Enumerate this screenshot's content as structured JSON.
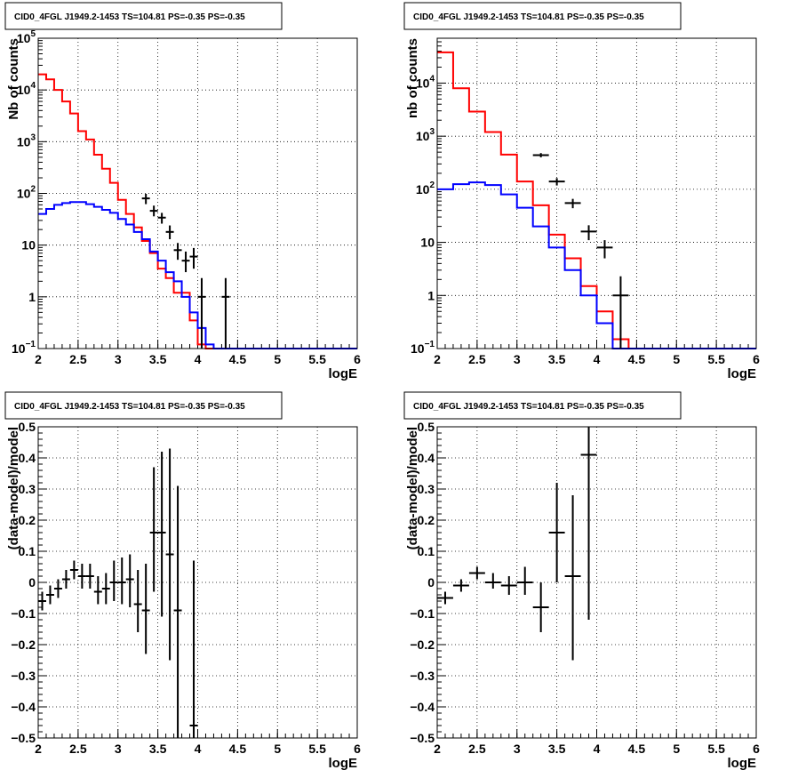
{
  "panels": [
    {
      "id": "top-left",
      "title": "CID0_4FGL J1949.2-1453 TS=104.81 PS=-0.35 PS=-0.35",
      "chart_data": {
        "type": "histogram",
        "xlabel": "logE",
        "ylabel": "Nb of counts",
        "xlim": [
          2,
          6
        ],
        "ylim": [
          0.1,
          100000
        ],
        "yscale": "log",
        "grid": true,
        "xticks": [
          "2",
          "2.5",
          "3",
          "3.5",
          "4",
          "4.5",
          "5",
          "5.5",
          "6"
        ],
        "yticks": [
          {
            "v": 0.1,
            "label": "10",
            "exp": "−1"
          },
          {
            "v": 1,
            "label": "1",
            "exp": ""
          },
          {
            "v": 10,
            "label": "10",
            "exp": ""
          },
          {
            "v": 100,
            "label": "10",
            "exp": "2"
          },
          {
            "v": 1000,
            "label": "10",
            "exp": "3"
          },
          {
            "v": 10000,
            "label": "10",
            "exp": "4"
          },
          {
            "v": 100000,
            "label": "10",
            "exp": "5"
          }
        ],
        "bin_edges": [
          2.0,
          2.1,
          2.2,
          2.3,
          2.4,
          2.5,
          2.6,
          2.7,
          2.8,
          2.9,
          3.0,
          3.1,
          3.2,
          3.3,
          3.4,
          3.5,
          3.6,
          3.7,
          3.8,
          3.9,
          4.0,
          4.1,
          4.2,
          4.3,
          4.4,
          4.5,
          4.6,
          4.7,
          4.8,
          4.9,
          5.0,
          5.1,
          5.2,
          5.3,
          5.4,
          5.5,
          5.6,
          5.7,
          5.8,
          5.9,
          6.0
        ],
        "series": [
          {
            "color": "#ff0000",
            "kind": "step",
            "values": [
              20000,
              16000,
              10000,
              6000,
              3500,
              1600,
              1100,
              560,
              300,
              160,
              75,
              40,
              22,
              12,
              7,
              3.5,
              2.3,
              1.2,
              1.2,
              0.35,
              0.12,
              0.1,
              0.1,
              0.1,
              0.1,
              0.1,
              0.1,
              0.1,
              0.1,
              0.1,
              0.1,
              0.1,
              0.1,
              0.1,
              0.1,
              0.1,
              0.1,
              0.1,
              0.1,
              0.1
            ]
          },
          {
            "color": "#0000ff",
            "kind": "step",
            "values": [
              40,
              50,
              60,
              65,
              68,
              68,
              62,
              55,
              48,
              42,
              32,
              25,
              18,
              13,
              7.5,
              5,
              3,
              2,
              1,
              0.5,
              0.25,
              0.12,
              0.1,
              0.1,
              0.1,
              0.1,
              0.1,
              0.1,
              0.1,
              0.1,
              0.1,
              0.1,
              0.1,
              0.1,
              0.1,
              0.1,
              0.1,
              0.1,
              0.1,
              0.1
            ]
          },
          {
            "color": "#000000",
            "kind": "points",
            "xerr": 0.05,
            "points": [
              {
                "x": 3.35,
                "y": 80,
                "lo": 62,
                "hi": 98
              },
              {
                "x": 3.45,
                "y": 46,
                "lo": 36,
                "hi": 58
              },
              {
                "x": 3.55,
                "y": 34,
                "lo": 26,
                "hi": 42
              },
              {
                "x": 3.65,
                "y": 18,
                "lo": 13,
                "hi": 24
              },
              {
                "x": 3.75,
                "y": 8,
                "lo": 5.2,
                "hi": 11
              },
              {
                "x": 3.85,
                "y": 5,
                "lo": 3,
                "hi": 7.5
              },
              {
                "x": 3.95,
                "y": 6,
                "lo": 3.5,
                "hi": 8.8
              },
              {
                "x": 4.05,
                "y": 1,
                "lo": 0.1,
                "hi": 2.3
              },
              {
                "x": 4.35,
                "y": 1,
                "lo": 0.1,
                "hi": 2.3
              }
            ]
          }
        ]
      }
    },
    {
      "id": "top-right",
      "title": "CID0_4FGL J1949.2-1453 TS=104.81 PS=-0.35 PS=-0.35",
      "chart_data": {
        "type": "histogram",
        "xlabel": "logE",
        "ylabel": "nb of counts",
        "xlim": [
          2,
          6
        ],
        "ylim": [
          0.1,
          70000
        ],
        "yscale": "log",
        "grid": true,
        "xticks": [
          "2",
          "2.5",
          "3",
          "3.5",
          "4",
          "4.5",
          "5",
          "5.5",
          "6"
        ],
        "yticks": [
          {
            "v": 0.1,
            "label": "10",
            "exp": "−1"
          },
          {
            "v": 1,
            "label": "1",
            "exp": ""
          },
          {
            "v": 10,
            "label": "10",
            "exp": ""
          },
          {
            "v": 100,
            "label": "10",
            "exp": "2"
          },
          {
            "v": 1000,
            "label": "10",
            "exp": "3"
          },
          {
            "v": 10000,
            "label": "10",
            "exp": "4"
          }
        ],
        "bin_edges": [
          2.0,
          2.2,
          2.4,
          2.6,
          2.8,
          3.0,
          3.2,
          3.4,
          3.6,
          3.8,
          4.0,
          4.2,
          4.4,
          4.6,
          4.8,
          5.0,
          5.2,
          5.4,
          5.6,
          5.8,
          6.0
        ],
        "series": [
          {
            "color": "#ff0000",
            "kind": "step",
            "values": [
              38000,
              8000,
              2900,
              1200,
              450,
              140,
              50,
              14,
              5,
              1.5,
              0.5,
              0.15,
              0.1,
              0.1,
              0.1,
              0.1,
              0.1,
              0.1,
              0.1,
              0.1
            ]
          },
          {
            "color": "#0000ff",
            "kind": "step",
            "values": [
              100,
              125,
              135,
              120,
              80,
              45,
              20,
              8,
              3,
              1,
              0.3,
              0.1,
              0.1,
              0.1,
              0.1,
              0.1,
              0.1,
              0.1,
              0.1,
              0.1
            ]
          },
          {
            "color": "#000000",
            "kind": "points",
            "xerr": 0.1,
            "points": [
              {
                "x": 3.3,
                "y": 440,
                "lo": 400,
                "hi": 480
              },
              {
                "x": 3.5,
                "y": 140,
                "lo": 118,
                "hi": 162
              },
              {
                "x": 3.7,
                "y": 55,
                "lo": 44,
                "hi": 66
              },
              {
                "x": 3.9,
                "y": 16,
                "lo": 11,
                "hi": 21
              },
              {
                "x": 4.1,
                "y": 8,
                "lo": 5,
                "hi": 11
              },
              {
                "x": 4.3,
                "y": 1,
                "lo": 0.1,
                "hi": 2.3
              }
            ]
          }
        ]
      }
    },
    {
      "id": "bottom-left",
      "title": "CID0_4FGL J1949.2-1453 TS=104.81 PS=-0.35 PS=-0.35",
      "chart_data": {
        "type": "scatter",
        "xlabel": "logE",
        "ylabel": "(data-model)/model",
        "xlim": [
          2,
          6
        ],
        "ylim": [
          -0.5,
          0.5
        ],
        "yscale": "linear",
        "grid": true,
        "xticks": [
          "2",
          "2.5",
          "3",
          "3.5",
          "4",
          "4.5",
          "5",
          "5.5",
          "6"
        ],
        "yticks": [
          {
            "v": -0.5,
            "label": "−0.5",
            "exp": ""
          },
          {
            "v": -0.4,
            "label": "−0.4",
            "exp": ""
          },
          {
            "v": -0.3,
            "label": "−0.3",
            "exp": ""
          },
          {
            "v": -0.2,
            "label": "−0.2",
            "exp": ""
          },
          {
            "v": -0.1,
            "label": "−0.1",
            "exp": ""
          },
          {
            "v": 0,
            "label": "0",
            "exp": ""
          },
          {
            "v": 0.1,
            "label": "0.1",
            "exp": ""
          },
          {
            "v": 0.2,
            "label": "0.2",
            "exp": ""
          },
          {
            "v": 0.3,
            "label": "0.3",
            "exp": ""
          },
          {
            "v": 0.4,
            "label": "0.4",
            "exp": ""
          },
          {
            "v": 0.5,
            "label": "0.5",
            "exp": ""
          }
        ],
        "series": [
          {
            "color": "#000000",
            "kind": "points",
            "xerr": 0.05,
            "points": [
              {
                "x": 2.05,
                "y": -0.06,
                "lo": -0.09,
                "hi": -0.03
              },
              {
                "x": 2.15,
                "y": -0.04,
                "lo": -0.07,
                "hi": -0.01
              },
              {
                "x": 2.25,
                "y": -0.02,
                "lo": -0.05,
                "hi": 0.01
              },
              {
                "x": 2.35,
                "y": 0.01,
                "lo": -0.02,
                "hi": 0.04
              },
              {
                "x": 2.45,
                "y": 0.04,
                "lo": 0.01,
                "hi": 0.07
              },
              {
                "x": 2.55,
                "y": 0.02,
                "lo": -0.02,
                "hi": 0.06
              },
              {
                "x": 2.65,
                "y": 0.02,
                "lo": -0.02,
                "hi": 0.06
              },
              {
                "x": 2.75,
                "y": -0.03,
                "lo": -0.07,
                "hi": 0.02
              },
              {
                "x": 2.85,
                "y": -0.02,
                "lo": -0.07,
                "hi": 0.03
              },
              {
                "x": 2.95,
                "y": 0.0,
                "lo": -0.06,
                "hi": 0.07
              },
              {
                "x": 3.05,
                "y": 0.0,
                "lo": -0.07,
                "hi": 0.08
              },
              {
                "x": 3.15,
                "y": 0.01,
                "lo": -0.08,
                "hi": 0.09
              },
              {
                "x": 3.25,
                "y": -0.07,
                "lo": -0.16,
                "hi": 0.04
              },
              {
                "x": 3.35,
                "y": -0.09,
                "lo": -0.23,
                "hi": 0.06
              },
              {
                "x": 3.45,
                "y": 0.16,
                "lo": -0.03,
                "hi": 0.37
              },
              {
                "x": 3.55,
                "y": 0.16,
                "lo": -0.11,
                "hi": 0.42
              },
              {
                "x": 3.65,
                "y": 0.09,
                "lo": -0.25,
                "hi": 0.43
              },
              {
                "x": 3.75,
                "y": -0.09,
                "lo": -0.5,
                "hi": 0.31
              },
              {
                "x": 3.95,
                "y": -0.46,
                "lo": -0.5,
                "hi": 0.07
              }
            ]
          }
        ]
      }
    },
    {
      "id": "bottom-right",
      "title": "CID0_4FGL J1949.2-1453 TS=104.81 PS=-0.35 PS=-0.35",
      "chart_data": {
        "type": "scatter",
        "xlabel": "logE",
        "ylabel": "(data-model)/model",
        "xlim": [
          2,
          6
        ],
        "ylim": [
          -0.5,
          0.5
        ],
        "yscale": "linear",
        "grid": true,
        "xticks": [
          "2",
          "2.5",
          "3",
          "3.5",
          "4",
          "4.5",
          "5",
          "5.5",
          "6"
        ],
        "yticks": [
          {
            "v": -0.5,
            "label": "−0.5",
            "exp": ""
          },
          {
            "v": -0.4,
            "label": "−0.4",
            "exp": ""
          },
          {
            "v": -0.3,
            "label": "−0.3",
            "exp": ""
          },
          {
            "v": -0.2,
            "label": "−0.2",
            "exp": ""
          },
          {
            "v": -0.1,
            "label": "−0.1",
            "exp": ""
          },
          {
            "v": 0,
            "label": "0",
            "exp": ""
          },
          {
            "v": 0.1,
            "label": "0.1",
            "exp": ""
          },
          {
            "v": 0.2,
            "label": "0.2",
            "exp": ""
          },
          {
            "v": 0.3,
            "label": "0.3",
            "exp": ""
          },
          {
            "v": 0.4,
            "label": "0.4",
            "exp": ""
          },
          {
            "v": 0.5,
            "label": "0.5",
            "exp": ""
          }
        ],
        "series": [
          {
            "color": "#000000",
            "kind": "points",
            "xerr": 0.1,
            "points": [
              {
                "x": 2.1,
                "y": -0.05,
                "lo": -0.07,
                "hi": -0.03
              },
              {
                "x": 2.3,
                "y": -0.01,
                "lo": -0.03,
                "hi": 0.01
              },
              {
                "x": 2.5,
                "y": 0.03,
                "lo": 0.01,
                "hi": 0.05
              },
              {
                "x": 2.7,
                "y": 0.0,
                "lo": -0.02,
                "hi": 0.03
              },
              {
                "x": 2.9,
                "y": -0.01,
                "lo": -0.04,
                "hi": 0.02
              },
              {
                "x": 3.1,
                "y": 0.0,
                "lo": -0.04,
                "hi": 0.05
              },
              {
                "x": 3.3,
                "y": -0.08,
                "lo": -0.16,
                "hi": 0.0
              },
              {
                "x": 3.5,
                "y": 0.16,
                "lo": 0.0,
                "hi": 0.32
              },
              {
                "x": 3.7,
                "y": 0.02,
                "lo": -0.25,
                "hi": 0.28
              },
              {
                "x": 3.9,
                "y": 0.41,
                "lo": -0.12,
                "hi": 0.5
              }
            ]
          }
        ]
      }
    }
  ]
}
